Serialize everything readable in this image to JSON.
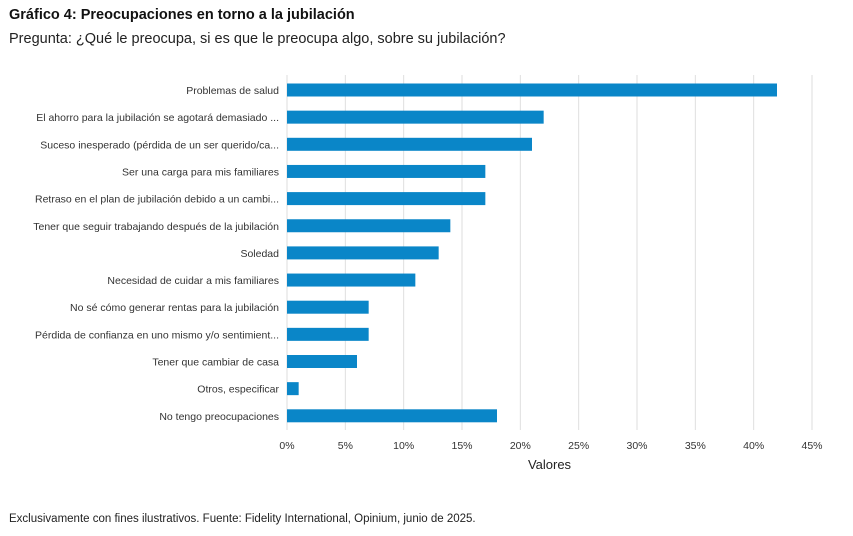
{
  "header": {
    "title": "Gráfico 4: Preocupaciones en torno a la jubilación",
    "subtitle": "Pregunta: ¿Qué le preocupa, si es que le preocupa algo, sobre su jubilación?"
  },
  "footer": {
    "source": "Exclusivamente con fines ilustrativos. Fuente: Fidelity International, Opinium, junio de 2025."
  },
  "chart_data": {
    "type": "bar",
    "orientation": "horizontal",
    "bar_color": "#0a86c8",
    "grid_color": "#dedede",
    "categories": [
      "Problemas de salud",
      "El ahorro para la jubilación se agotará demasiado ...",
      "Suceso inesperado (pérdida de un ser querido/ca...",
      "Ser una carga para mis familiares",
      "Retraso en el plan de jubilación debido a un cambi...",
      "Tener que seguir trabajando después de la jubilación",
      "Soledad",
      "Necesidad de cuidar a mis familiares",
      "No sé cómo generar rentas para la jubilación",
      "Pérdida de confianza en uno mismo y/o sentimient...",
      "Tener que cambiar de casa",
      "Otros, especificar",
      "No tengo preocupaciones"
    ],
    "values": [
      42,
      22,
      21,
      17,
      17,
      14,
      13,
      11,
      7,
      7,
      6,
      1,
      18
    ],
    "xlim": [
      0,
      45
    ],
    "xticks": [
      0,
      5,
      10,
      15,
      20,
      25,
      30,
      35,
      40,
      45
    ],
    "tick_labels": [
      "0%",
      "5%",
      "10%",
      "15%",
      "20%",
      "25%",
      "30%",
      "35%",
      "40%",
      "45%"
    ],
    "xlabel": "Valores",
    "ylabel": "",
    "grid": true
  }
}
